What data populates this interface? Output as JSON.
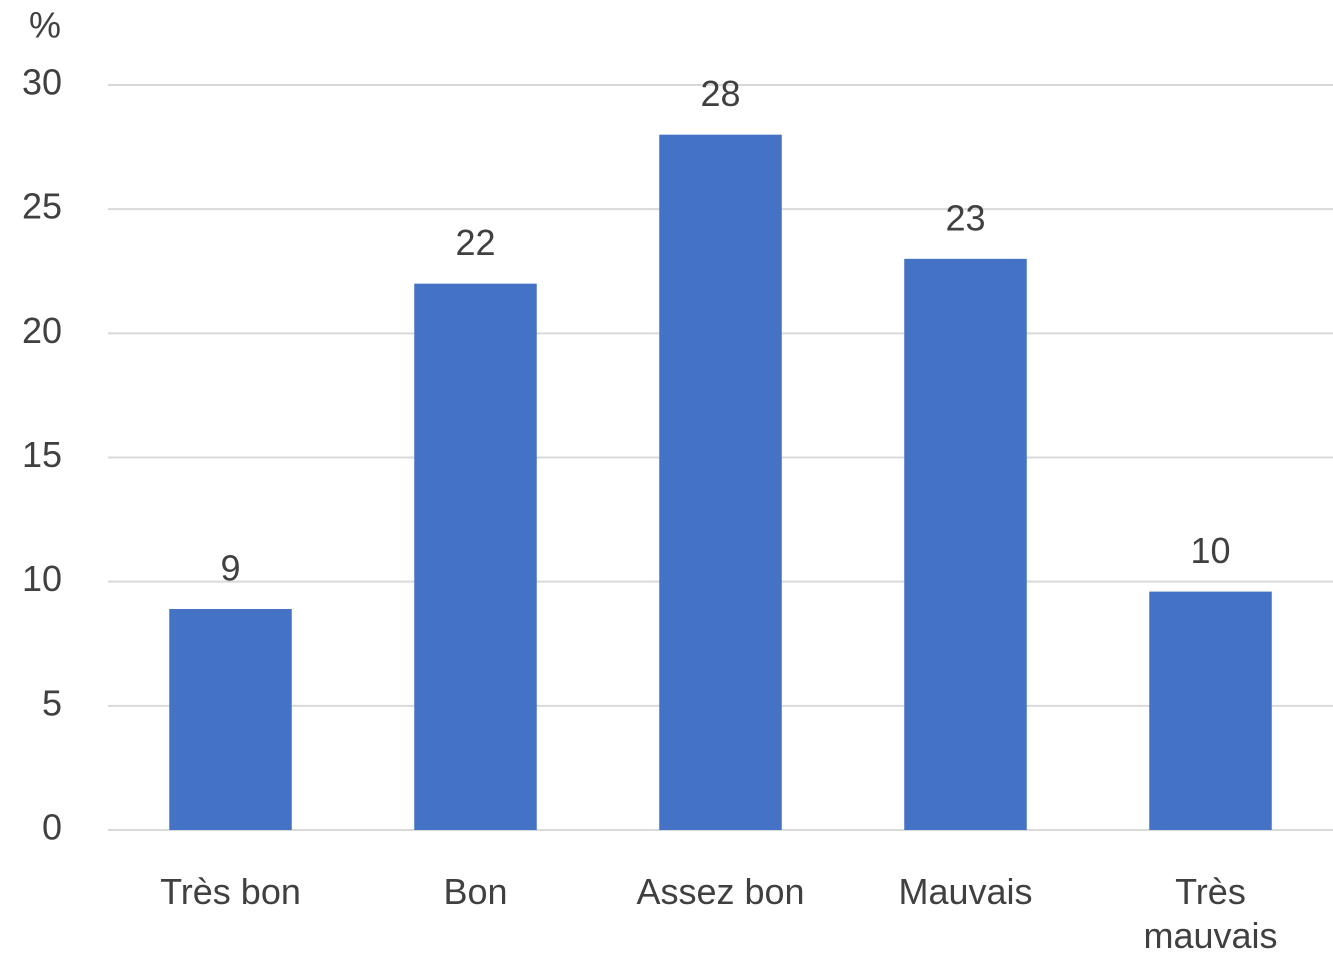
{
  "chart_data": {
    "type": "bar",
    "y_label": "%",
    "categories": [
      "Très bon",
      "Bon",
      "Assez bon",
      "Mauvais",
      "Très mauvais"
    ],
    "values": [
      8.9,
      22,
      28,
      23,
      9.6
    ],
    "value_labels": [
      "9",
      "22",
      "28",
      "23",
      "10"
    ],
    "color": "#4472c4",
    "ylim": [
      0,
      30
    ],
    "yticks": [
      0,
      5,
      10,
      15,
      20,
      25,
      30
    ],
    "grid": true
  }
}
